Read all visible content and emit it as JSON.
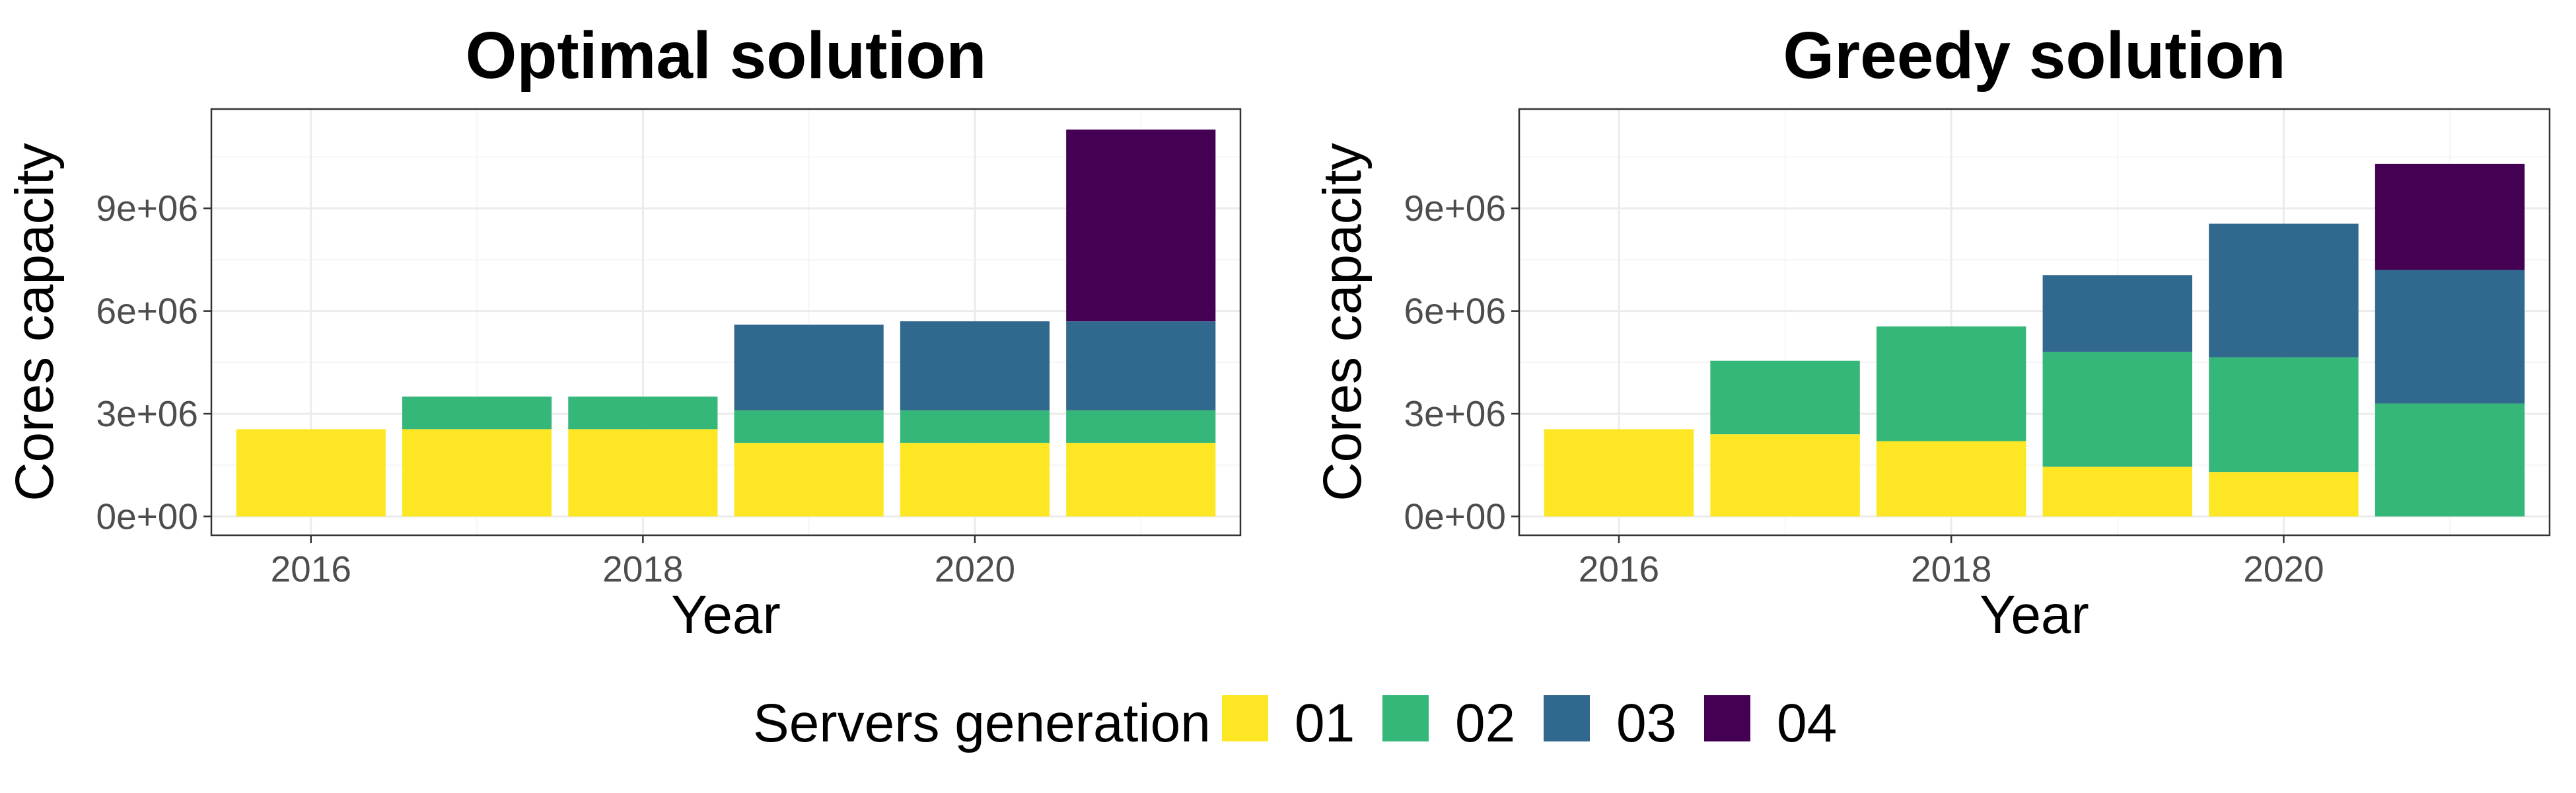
{
  "chart_data": [
    {
      "type": "bar",
      "stacked": true,
      "title": "Optimal solution",
      "xlabel": "Year",
      "ylabel": "Cores capacity",
      "categories": [
        2016,
        2017,
        2018,
        2019,
        2020,
        2021
      ],
      "x_ticks": [
        "2016",
        "2018",
        "2020"
      ],
      "y_ticks": [
        "0e+00",
        "3e+06",
        "6e+06",
        "9e+06"
      ],
      "ylim": [
        -550000,
        11900000
      ],
      "xlim": [
        2015.4,
        2021.6
      ],
      "grid": true,
      "series": [
        {
          "name": "01",
          "color": "#FDE725",
          "values": [
            2550000,
            2550000,
            2550000,
            2150000,
            2150000,
            2150000
          ]
        },
        {
          "name": "02",
          "color": "#35B779",
          "values": [
            0,
            950000,
            950000,
            950000,
            950000,
            950000
          ]
        },
        {
          "name": "03",
          "color": "#31688E",
          "values": [
            0,
            0,
            0,
            2500000,
            2600000,
            2600000
          ]
        },
        {
          "name": "04",
          "color": "#440154",
          "values": [
            0,
            0,
            0,
            0,
            0,
            5600000
          ]
        }
      ]
    },
    {
      "type": "bar",
      "stacked": true,
      "title": "Greedy solution",
      "xlabel": "Year",
      "ylabel": "Cores capacity",
      "categories": [
        2016,
        2017,
        2018,
        2019,
        2020,
        2021
      ],
      "x_ticks": [
        "2016",
        "2018",
        "2020"
      ],
      "y_ticks": [
        "0e+00",
        "3e+06",
        "6e+06",
        "9e+06"
      ],
      "ylim": [
        -550000,
        11900000
      ],
      "xlim": [
        2015.4,
        2021.6
      ],
      "grid": true,
      "series": [
        {
          "name": "01",
          "color": "#FDE725",
          "values": [
            2550000,
            2400000,
            2200000,
            1450000,
            1300000,
            0
          ]
        },
        {
          "name": "02",
          "color": "#35B779",
          "values": [
            0,
            2150000,
            3350000,
            3350000,
            3350000,
            3300000
          ]
        },
        {
          "name": "03",
          "color": "#31688E",
          "values": [
            0,
            0,
            0,
            2250000,
            3900000,
            3900000
          ]
        },
        {
          "name": "04",
          "color": "#440154",
          "values": [
            0,
            0,
            0,
            0,
            0,
            3100000
          ]
        }
      ]
    }
  ],
  "legend": {
    "title": "Servers generation",
    "position": "bottom",
    "items": [
      {
        "label": "01",
        "color": "#FDE725"
      },
      {
        "label": "02",
        "color": "#35B779"
      },
      {
        "label": "03",
        "color": "#31688E"
      },
      {
        "label": "04",
        "color": "#440154"
      }
    ]
  }
}
